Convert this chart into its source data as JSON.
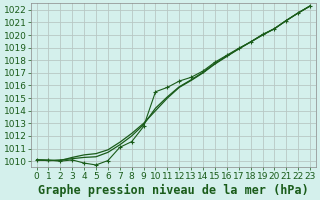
{
  "bg_color": "#d4f0ec",
  "grid_color": "#b8c8c4",
  "line_color": "#1a5c1a",
  "xlabel": "Graphe pression niveau de la mer (hPa)",
  "ylim": [
    1009.5,
    1022.5
  ],
  "xlim": [
    -0.5,
    23.5
  ],
  "yticks": [
    1010,
    1011,
    1012,
    1013,
    1014,
    1015,
    1016,
    1017,
    1018,
    1019,
    1020,
    1021,
    1022
  ],
  "xticks": [
    0,
    1,
    2,
    3,
    4,
    5,
    6,
    7,
    8,
    9,
    10,
    11,
    12,
    13,
    14,
    15,
    16,
    17,
    18,
    19,
    20,
    21,
    22,
    23
  ],
  "hours": [
    0,
    1,
    2,
    3,
    4,
    5,
    6,
    7,
    8,
    9,
    10,
    11,
    12,
    13,
    14,
    15,
    16,
    17,
    18,
    19,
    20,
    21,
    22,
    23
  ],
  "pressure_raw": [
    1010.1,
    1010.1,
    1010.0,
    1010.1,
    1009.85,
    1009.7,
    1010.05,
    1011.1,
    1011.55,
    1012.75,
    1015.5,
    1015.85,
    1016.35,
    1016.65,
    1017.15,
    1017.85,
    1018.4,
    1018.95,
    1019.45,
    1020.05,
    1020.5,
    1021.15,
    1021.75,
    1022.3
  ],
  "pressure_smooth1": [
    1010.1,
    1010.05,
    1010.05,
    1010.3,
    1010.5,
    1010.6,
    1010.9,
    1011.5,
    1012.2,
    1013.0,
    1014.0,
    1015.0,
    1015.85,
    1016.4,
    1017.0,
    1017.7,
    1018.3,
    1018.9,
    1019.45,
    1020.0,
    1020.5,
    1021.15,
    1021.75,
    1022.3
  ],
  "pressure_smooth2": [
    1010.1,
    1010.05,
    1010.1,
    1010.2,
    1010.3,
    1010.35,
    1010.7,
    1011.3,
    1012.0,
    1012.9,
    1014.2,
    1015.1,
    1015.9,
    1016.45,
    1017.05,
    1017.75,
    1018.35,
    1018.9,
    1019.45,
    1020.0,
    1020.5,
    1021.15,
    1021.75,
    1022.3
  ],
  "title_fontsize": 8.5,
  "tick_fontsize": 6.5
}
